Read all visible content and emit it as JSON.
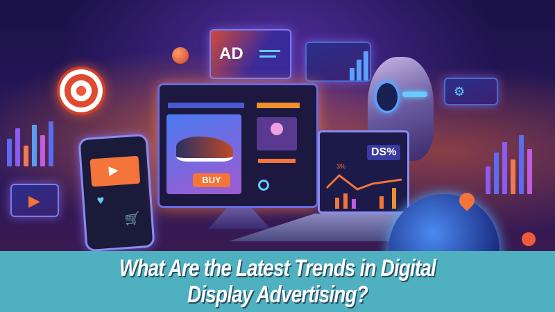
{
  "scene": {
    "ad_panel_label": "AD",
    "product_button": "BUY",
    "laptop_badge": "DS%",
    "laptop_small_label": "3%",
    "colors": {
      "background": "#1a1248",
      "accent_orange": "#f4743a",
      "accent_blue": "#5aa0ff",
      "banner": "#4fb0c0"
    },
    "icons": [
      "target-icon",
      "play-icon",
      "heart-icon",
      "cart-icon",
      "shoe-image",
      "user-icon",
      "robot-head",
      "globe-icon",
      "map-pin-icon",
      "gear-icon"
    ]
  },
  "title": {
    "line1": "What Are the Latest Trends in Digital",
    "line2": "Display Advertising?"
  }
}
